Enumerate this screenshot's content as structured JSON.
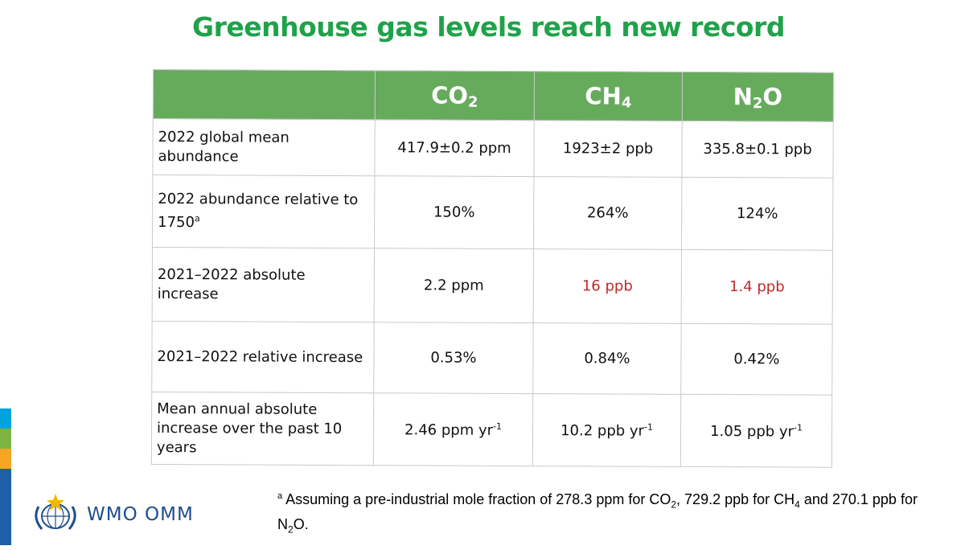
{
  "title": "Greenhouse gas levels reach new record",
  "table": {
    "headers": [
      {
        "main": "CO",
        "sub": "2"
      },
      {
        "main": "CH",
        "sub": "4"
      },
      {
        "main": "N",
        "sub": "2",
        "tail": "O"
      }
    ],
    "rows": [
      {
        "label": "2022 global mean abundance",
        "label_sup": "",
        "values": [
          "417.9±0.2 ppm",
          "1923±2 ppb",
          "335.8±0.1 ppb"
        ],
        "red": [
          false,
          false,
          false
        ]
      },
      {
        "label": "2022 abundance relative to 1750",
        "label_sup": "a",
        "values": [
          "150%",
          "264%",
          "124%"
        ],
        "red": [
          false,
          false,
          false
        ]
      },
      {
        "label": "2021–2022 absolute increase",
        "label_sup": "",
        "values": [
          "2.2 ppm",
          "16 ppb",
          "1.4 ppb"
        ],
        "red": [
          false,
          true,
          true
        ]
      },
      {
        "label": "2021–2022 relative increase",
        "label_sup": "",
        "values": [
          "0.53%",
          "0.84%",
          "0.42%"
        ],
        "red": [
          false,
          false,
          false
        ]
      },
      {
        "label": "Mean annual absolute increase over the past 10 years",
        "label_sup": "",
        "values": [
          "2.46 ppm yr",
          "10.2 ppb yr",
          "1.05 ppb yr"
        ],
        "value_sup": "-1",
        "red": [
          false,
          false,
          false
        ]
      }
    ]
  },
  "footnote": {
    "marker": "a",
    "text_1": " Assuming a pre-industrial mole fraction of 278.3 ppm for CO",
    "sub_1": "2",
    "text_2": ", 729.2 ppb for CH",
    "sub_2": "4",
    "text_3": " and 270.1 ppb for N",
    "sub_3": "2",
    "text_4": "O."
  },
  "logo": {
    "text": "WMO OMM"
  },
  "colors": {
    "title": "#1fa24a",
    "header_bg": "#66ab5c",
    "highlight": "#c0292c",
    "sidebar": [
      "#00a3dd",
      "#7cb342",
      "#f5a623",
      "#1f5fa8",
      "#1f5fa8",
      "#1f5fa8",
      "#1f5fa8"
    ]
  }
}
